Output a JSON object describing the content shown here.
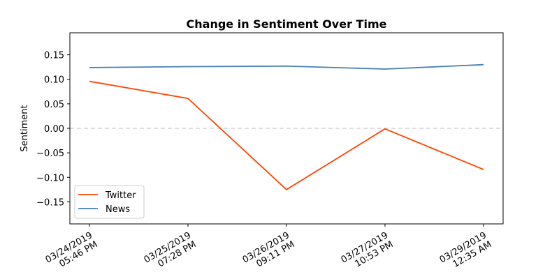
{
  "chart_data": {
    "type": "line",
    "title": "Change in Sentiment Over Time",
    "xlabel": "",
    "ylabel": "Sentiment",
    "categories": [
      [
        "03/24/2019",
        "05:46 PM"
      ],
      [
        "03/25/2019",
        "07:28 PM"
      ],
      [
        "03/26/2019",
        "09:11 PM"
      ],
      [
        "03/27/2019",
        "10:53 PM"
      ],
      [
        "03/29/2019",
        "12:35 AM"
      ]
    ],
    "series": [
      {
        "name": "Twitter",
        "color": "#ff4500",
        "values": [
          0.096,
          0.061,
          -0.125,
          -0.001,
          -0.084
        ]
      },
      {
        "name": "News",
        "color": "#4682b4",
        "values": [
          0.124,
          0.126,
          0.127,
          0.121,
          0.13
        ]
      }
    ],
    "ylim": [
      -0.195,
      0.195
    ],
    "yticks": [
      0.15,
      0.1,
      0.05,
      0.0,
      -0.05,
      -0.1,
      -0.15
    ],
    "ytick_labels": [
      "0.15",
      "0.10",
      "0.05",
      "0.00",
      "−0.05",
      "−0.10",
      "−0.15"
    ],
    "reference_line": {
      "y": 0,
      "style": "dashed",
      "color": "#d3d3d3"
    },
    "grid": false,
    "legend": "lower-left"
  }
}
